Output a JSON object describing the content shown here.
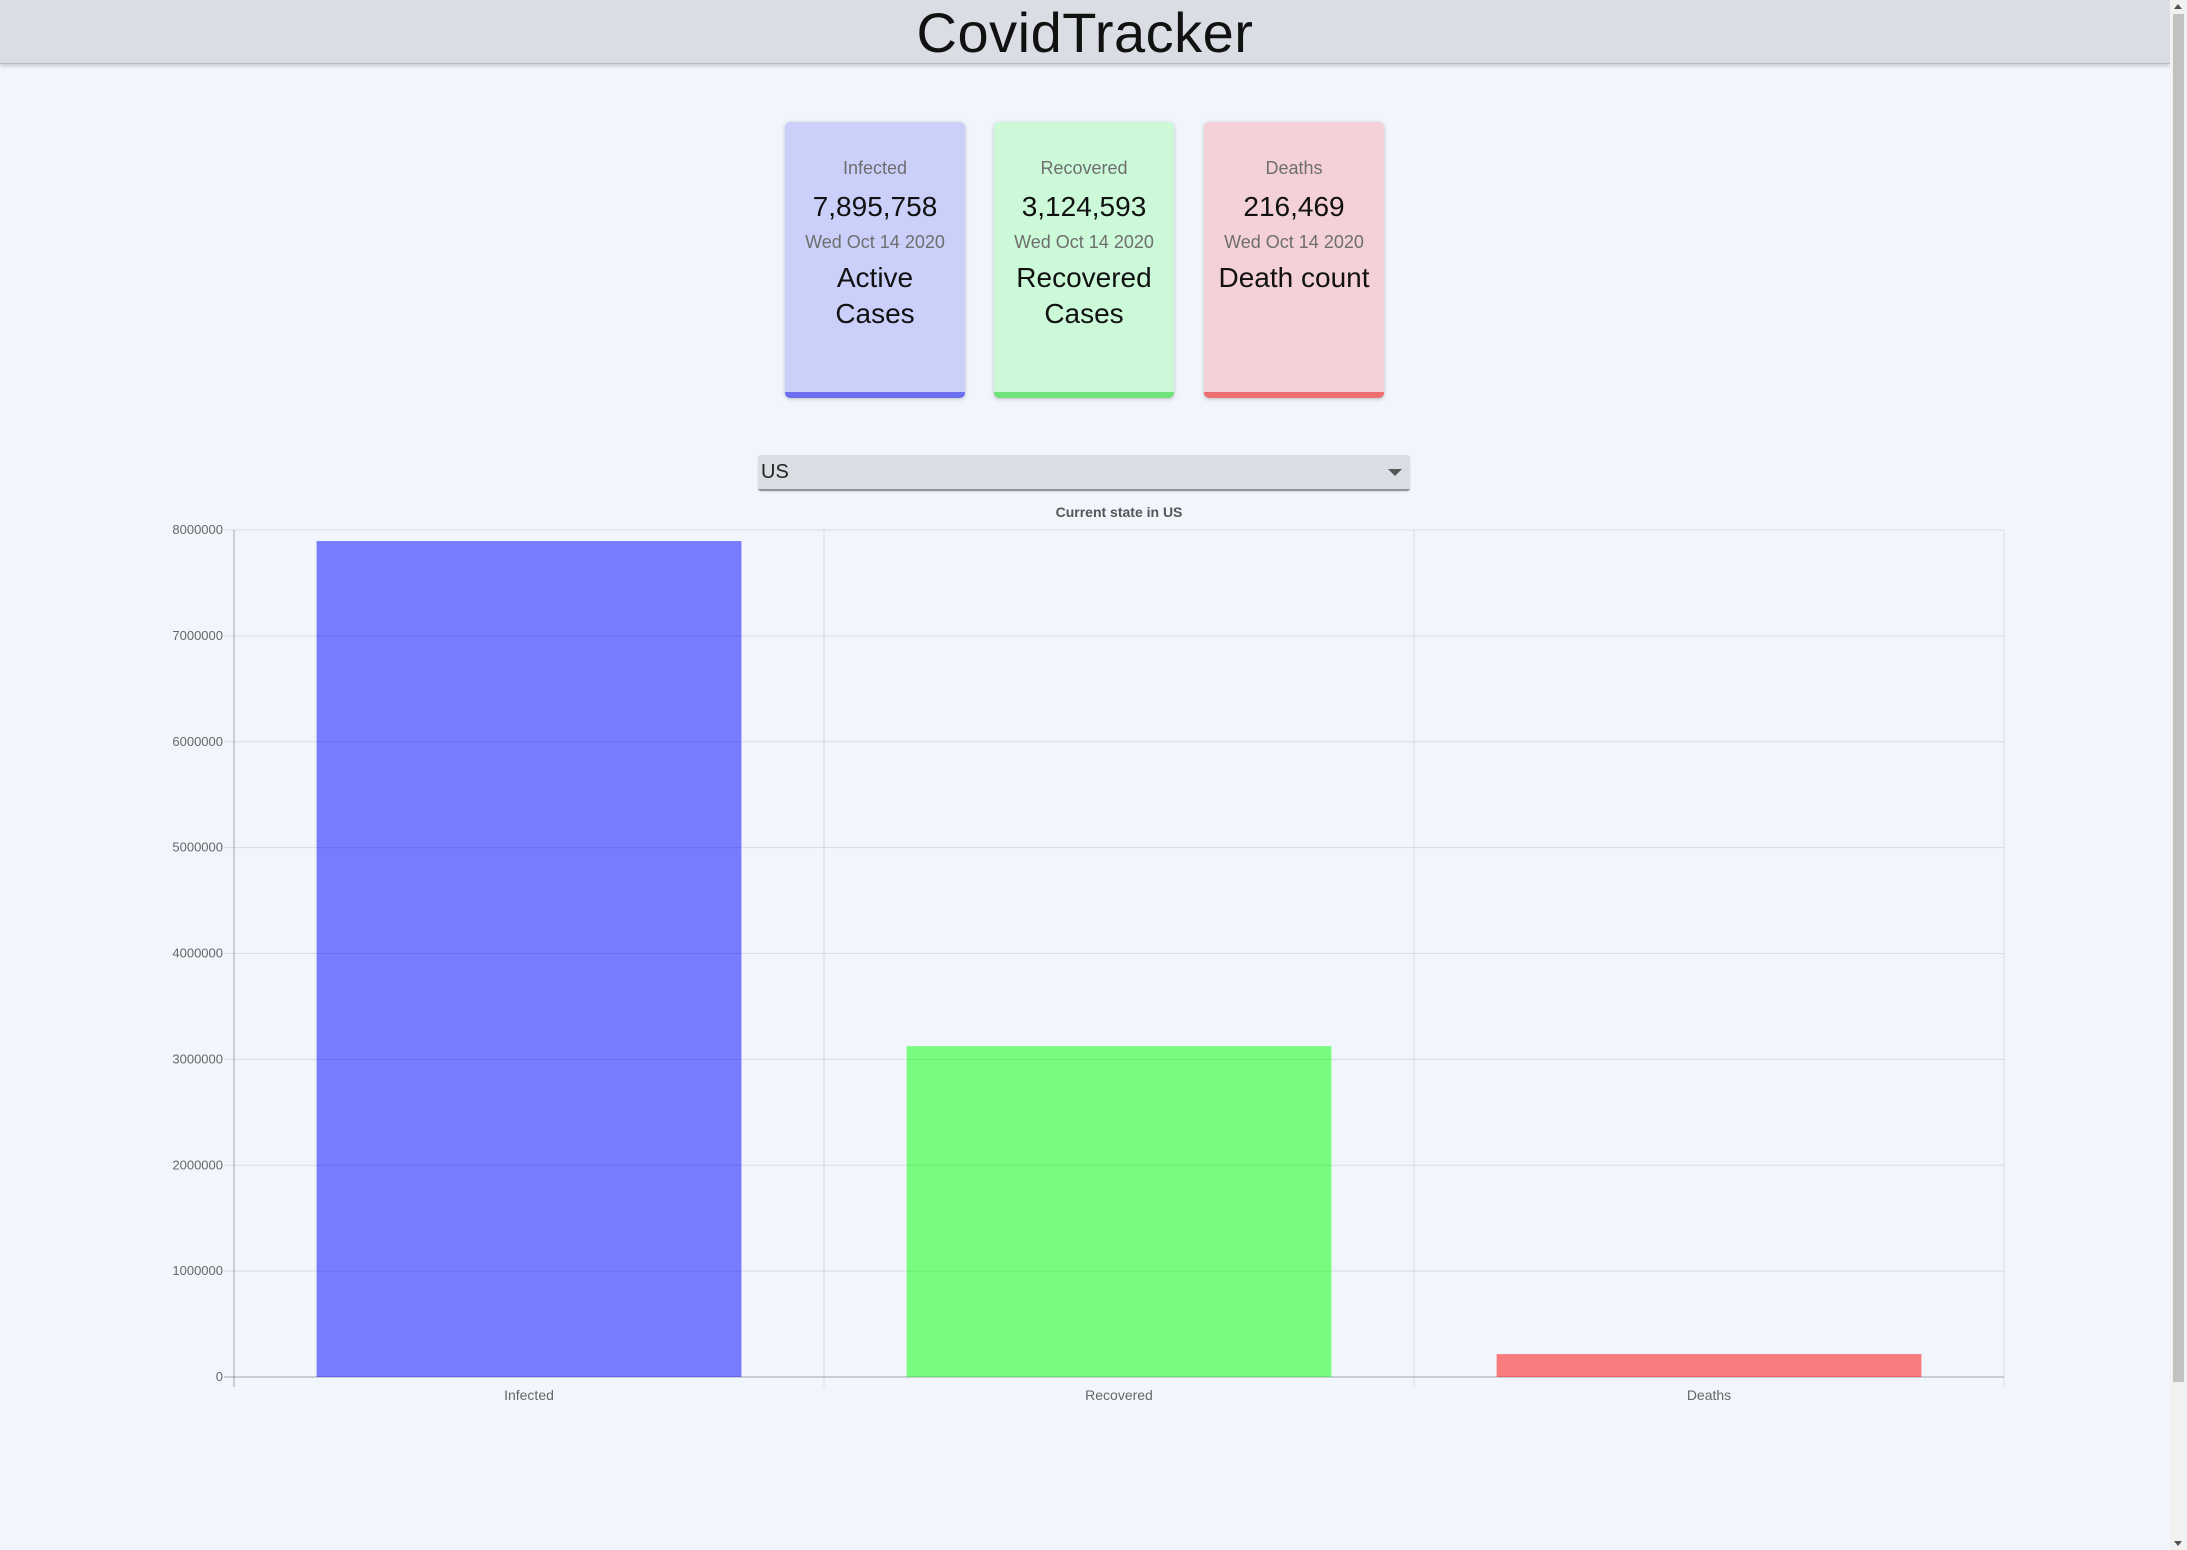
{
  "header": {
    "title": "CovidTracker"
  },
  "cards": {
    "infected": {
      "label": "Infected",
      "value": "7,895,758",
      "date": "Wed Oct 14 2020",
      "description": "Active Cases",
      "accent": "#6b6ff0"
    },
    "recovered": {
      "label": "Recovered",
      "value": "3,124,593",
      "date": "Wed Oct 14 2020",
      "description": "Recovered Cases",
      "accent": "#72e27a"
    },
    "deaths": {
      "label": "Deaths",
      "value": "216,469",
      "date": "Wed Oct 14 2020",
      "description": "Death count",
      "accent": "#ee6f72"
    }
  },
  "country_picker": {
    "selected": "US",
    "icon": "chevron-down-icon"
  },
  "chart_data": {
    "type": "bar",
    "title": "Current state in US",
    "categories": [
      "Infected",
      "Recovered",
      "Deaths"
    ],
    "values": [
      7895758,
      3124593,
      216469
    ],
    "colors": [
      "rgba(0,0,255,0.5)",
      "rgba(0,255,0,0.5)",
      "rgba(255,0,0,0.5)"
    ],
    "ylim": [
      0,
      8000000
    ],
    "yticks": [
      0,
      1000000,
      2000000,
      3000000,
      4000000,
      5000000,
      6000000,
      7000000,
      8000000
    ],
    "grid": true,
    "legend": "none",
    "xlabel": "",
    "ylabel": ""
  }
}
